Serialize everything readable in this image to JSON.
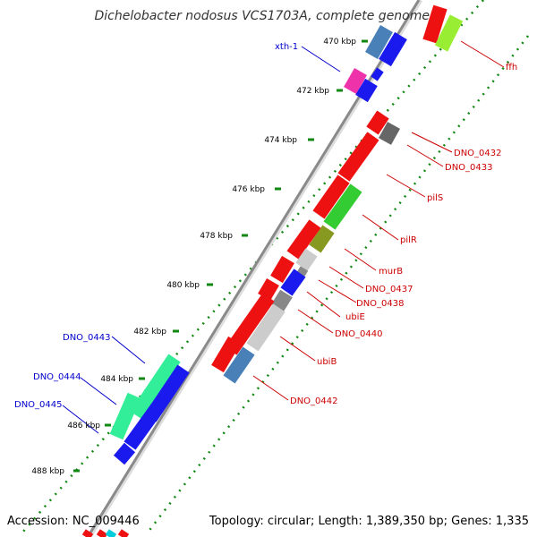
{
  "title": "Dichelobacter nodosus VCS1703A, complete genome",
  "footer": {
    "accession": "Accession: NC_009446",
    "topology": "Topology: circular; Length: 1,389,350 bp; Genes: 1,335"
  },
  "colors": {
    "backbone": "#8a8a8a",
    "ticks": "#118811",
    "forward_label": "#0000cc",
    "reverse_label": "#cc0000"
  },
  "kbp_ticks": [
    "470 kbp",
    "472 kbp",
    "474 kbp",
    "476 kbp",
    "478 kbp",
    "480 kbp",
    "482 kbp",
    "484 kbp",
    "486 kbp",
    "488 kbp"
  ],
  "labels": {
    "forward": [
      "xth-1",
      "DNO_0443",
      "DNO_0444",
      "DNO_0445"
    ],
    "reverse": [
      "ffh",
      "DNO_0432",
      "DNO_0433",
      "pilS",
      "pilR",
      "murB",
      "DNO_0437",
      "DNO_0438",
      "ubiE",
      "DNO_0440",
      "ubiB",
      "DNO_0442"
    ]
  }
}
